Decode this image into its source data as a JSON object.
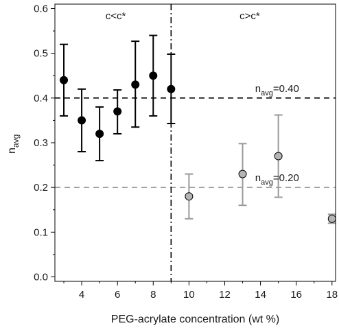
{
  "chart_data": {
    "type": "scatter",
    "xlabel": "PEG-acrylate concentration (wt %)",
    "ylabel_main": "n",
    "ylabel_sub": "avg",
    "xlim": [
      2.5,
      18.2
    ],
    "ylim": [
      -0.01,
      0.61
    ],
    "xticks": [
      4,
      6,
      8,
      10,
      12,
      14,
      16,
      18
    ],
    "yticks": [
      0.0,
      0.1,
      0.2,
      0.3,
      0.4,
      0.5,
      0.6
    ],
    "ytick_labels": [
      "0.0",
      "0.1",
      "0.2",
      "0.3",
      "0.4",
      "0.5",
      "0.6"
    ],
    "grid": false,
    "series": [
      {
        "color": "#000000",
        "x": [
          3,
          4,
          5,
          6,
          7,
          8,
          9
        ],
        "y": [
          0.44,
          0.35,
          0.32,
          0.37,
          0.43,
          0.45,
          0.42
        ],
        "err_low": [
          0.36,
          0.28,
          0.26,
          0.32,
          0.335,
          0.36,
          0.343
        ],
        "err_high": [
          0.52,
          0.42,
          0.38,
          0.418,
          0.527,
          0.54,
          0.498
        ]
      },
      {
        "color": "#9a9a9a",
        "x": [
          10,
          13,
          15,
          18
        ],
        "y": [
          0.18,
          0.23,
          0.27,
          0.13
        ],
        "err_low": [
          0.13,
          0.16,
          0.178,
          0.12
        ],
        "err_high": [
          0.23,
          0.298,
          0.362,
          0.14
        ]
      }
    ],
    "reference_lines": [
      {
        "axis": "y",
        "value": 0.4,
        "style": "dashed",
        "color": "#000000",
        "label_main": "n",
        "label_sub": "avg",
        "label_value": "=0.40"
      },
      {
        "axis": "y",
        "value": 0.2,
        "style": "dashed",
        "color": "#999999",
        "label_main": "n",
        "label_sub": "avg",
        "label_value": "=0.20"
      },
      {
        "axis": "x",
        "value": 9,
        "style": "dashdot",
        "color": "#000000"
      }
    ],
    "region_labels": [
      {
        "text": "c<c*",
        "x": 5.9
      },
      {
        "text": "c>c*",
        "x": 13.4
      }
    ]
  }
}
